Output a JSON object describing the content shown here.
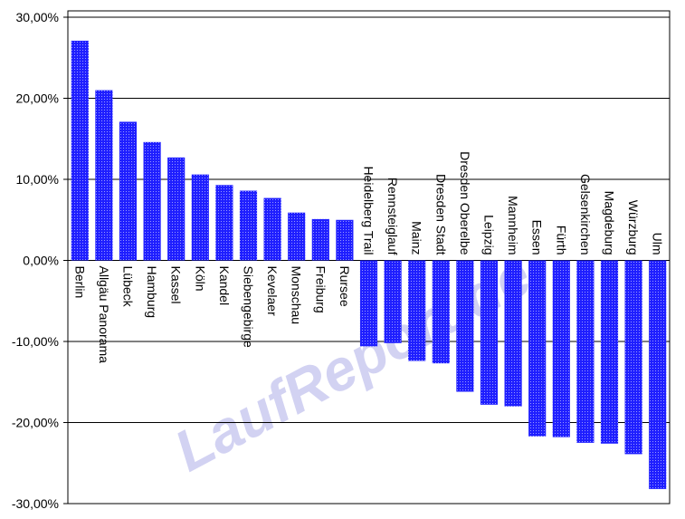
{
  "chart_data": {
    "type": "bar",
    "watermark": "LaufReport.de",
    "categories": [
      "Berlin",
      "Allgäu Panorama",
      "Lübeck",
      "Hamburg",
      "Kassel",
      "Köln",
      "Kandel",
      "Siebengebirge",
      "Kevelaer",
      "Monschau",
      "Freiburg",
      "Rursee",
      "Heidelberg Trail",
      "Rennsteiglauf",
      "Mainz",
      "Dresden Stadt",
      "Dresden Oberelbe",
      "Leipzig",
      "Mannheim",
      "Essen",
      "Fürth",
      "Gelsenkirchen",
      "Magdeburg",
      "Würzburg",
      "Ulm"
    ],
    "values": [
      27.1,
      21.0,
      17.1,
      14.6,
      12.7,
      10.6,
      9.3,
      8.6,
      7.7,
      5.9,
      5.1,
      5.0,
      -10.6,
      -10.2,
      -12.4,
      -12.7,
      -16.2,
      -17.8,
      -18.0,
      -21.7,
      -21.8,
      -22.5,
      -22.6,
      -23.9,
      -28.2
    ],
    "color": "#1f1fff",
    "ylim": [
      -30,
      30
    ],
    "yticks": [
      {
        "value": -30,
        "label": "-30,00%"
      },
      {
        "value": -20,
        "label": "-20,00%"
      },
      {
        "value": -10,
        "label": "-10,00%"
      },
      {
        "value": 0,
        "label": "0,00%"
      },
      {
        "value": 10,
        "label": "10,00%"
      },
      {
        "value": 20,
        "label": "20,00%"
      },
      {
        "value": 30,
        "label": "30,00%"
      }
    ],
    "grid": true
  }
}
